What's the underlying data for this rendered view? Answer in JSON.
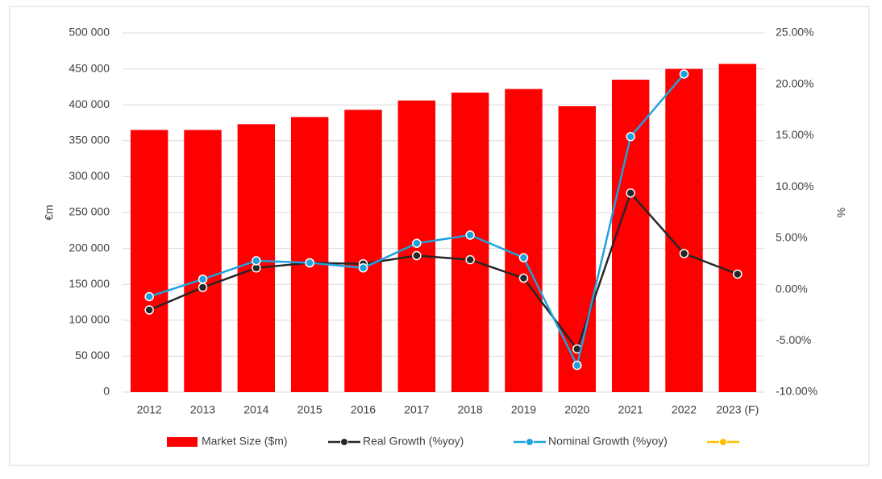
{
  "chart_data": {
    "type": "bar-line",
    "categories": [
      "2012",
      "2013",
      "2014",
      "2015",
      "2016",
      "2017",
      "2018",
      "2019",
      "2020",
      "2021",
      "2022",
      "2023 (F)"
    ],
    "ylabel": "€m",
    "y2label": "%",
    "ylim": [
      0,
      500000
    ],
    "yticks": [
      0,
      {
        "value": 50000,
        "label": "50 000"
      },
      {
        "value": 100000,
        "label": "100 000"
      },
      {
        "value": 150000,
        "label": "150 000"
      },
      {
        "value": 200000,
        "label": "200 000"
      },
      {
        "value": 250000,
        "label": "250 000"
      },
      {
        "value": 300000,
        "label": "300 000"
      },
      {
        "value": 350000,
        "label": "350 000"
      },
      {
        "value": 400000,
        "label": "400 000"
      },
      {
        "value": 450000,
        "label": "450 000"
      },
      {
        "value": 500000,
        "label": "500 000"
      }
    ],
    "y2lim": [
      -10,
      25
    ],
    "y2ticks": [
      {
        "value": -10,
        "label": "-10.00%"
      },
      {
        "value": -5,
        "label": "-5.00%"
      },
      {
        "value": 0,
        "label": "0.00%"
      },
      {
        "value": 5,
        "label": "5.00%"
      },
      {
        "value": 10,
        "label": "10.00%"
      },
      {
        "value": 15,
        "label": "15.00%"
      },
      {
        "value": 20,
        "label": "20.00%"
      },
      {
        "value": 25,
        "label": "25.00%"
      }
    ],
    "grid": true,
    "legend": "bottom",
    "series": [
      {
        "name": "Market Size ($m)",
        "type": "bar",
        "color": "#ff0000",
        "values": [
          365000,
          365000,
          373000,
          383000,
          393000,
          406000,
          417000,
          422000,
          398000,
          435000,
          450000,
          457000
        ]
      },
      {
        "name": "Real Growth (%yoy)",
        "type": "line",
        "axis": "y2",
        "color": "#262626",
        "marker_color": "#262626",
        "values": [
          -2.0,
          0.2,
          2.1,
          2.6,
          2.5,
          3.3,
          2.9,
          1.1,
          -5.8,
          9.4,
          3.5,
          1.5
        ]
      },
      {
        "name": "Nominal Growth (%yoy)",
        "type": "line",
        "axis": "y2",
        "color": "#1fa2dc",
        "marker_color": "#1fa2dc",
        "values": [
          -0.7,
          1.0,
          2.8,
          2.6,
          2.1,
          4.5,
          5.3,
          3.1,
          -7.4,
          14.9,
          21.0,
          null
        ]
      },
      {
        "type": "line",
        "axis": "y2",
        "color": "#ffc000",
        "marker_color": "#ffc000",
        "values": [
          null,
          null,
          null,
          null,
          null,
          null,
          null,
          null,
          null,
          null,
          null,
          null
        ]
      }
    ]
  }
}
